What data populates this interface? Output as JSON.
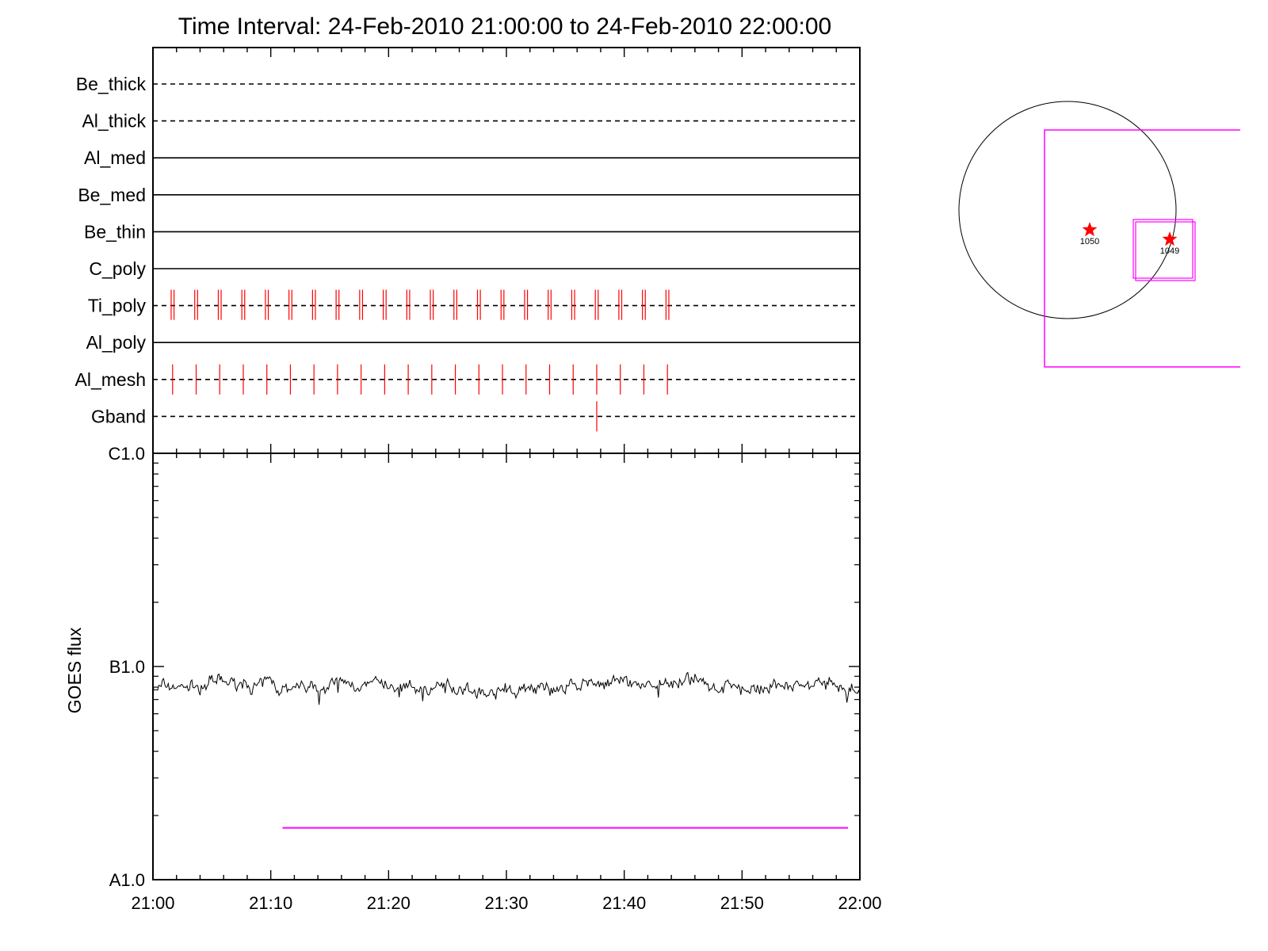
{
  "chart_data": [
    {
      "type": "timeline",
      "title": "Time Interval: 24-Feb-2010 21:00:00 to 24-Feb-2010 22:00:00",
      "x_ticks": [
        "21:00",
        "21:10",
        "21:20",
        "21:30",
        "21:40",
        "21:50",
        "22:00"
      ],
      "rows": [
        {
          "name": "Be_thick",
          "style": "dashed",
          "events": []
        },
        {
          "name": "Al_thick",
          "style": "dashed",
          "events": []
        },
        {
          "name": "Al_med",
          "style": "solid",
          "events": []
        },
        {
          "name": "Be_med",
          "style": "solid",
          "events": []
        },
        {
          "name": "Be_thin",
          "style": "solid",
          "events": []
        },
        {
          "name": "C_poly",
          "style": "solid",
          "events": []
        },
        {
          "name": "Ti_poly",
          "style": "dashed",
          "marker": "double",
          "events": [
            "21:01:40",
            "21:03:40",
            "21:05:40",
            "21:07:40",
            "21:09:40",
            "21:11:40",
            "21:13:40",
            "21:15:40",
            "21:17:40",
            "21:19:40",
            "21:21:40",
            "21:23:40",
            "21:25:40",
            "21:27:40",
            "21:29:40",
            "21:31:40",
            "21:33:40",
            "21:35:40",
            "21:37:40",
            "21:39:40",
            "21:41:40",
            "21:43:40"
          ]
        },
        {
          "name": "Al_poly",
          "style": "solid",
          "events": []
        },
        {
          "name": "Al_mesh",
          "style": "dashed",
          "marker": "single",
          "events": [
            "21:01:40",
            "21:03:40",
            "21:05:40",
            "21:07:40",
            "21:09:40",
            "21:11:40",
            "21:13:40",
            "21:15:40",
            "21:17:40",
            "21:19:40",
            "21:21:40",
            "21:23:40",
            "21:25:40",
            "21:27:40",
            "21:29:40",
            "21:31:40",
            "21:33:40",
            "21:35:40",
            "21:37:40",
            "21:39:40",
            "21:41:40",
            "21:43:40"
          ]
        },
        {
          "name": "Gband",
          "style": "dashed",
          "marker": "single",
          "events": [
            "21:37:40"
          ]
        }
      ],
      "marker_color": "#ff0000"
    },
    {
      "type": "line",
      "ylabel": "GOES flux",
      "yscale": "log",
      "y_ticks": [
        "C1.0",
        "B1.0",
        "A1.0"
      ],
      "ylim_class": [
        "A1.0",
        "C1.0"
      ],
      "xlim": [
        "21:00",
        "22:00"
      ],
      "x_ticks": [
        "21:00",
        "21:10",
        "21:20",
        "21:30",
        "21:40",
        "21:50",
        "22:00"
      ],
      "series_color": "#000000",
      "series_level": "B0.8",
      "interval_bar": {
        "start": "21:11",
        "end": "21:59",
        "color": "#ff00ff"
      }
    },
    {
      "type": "map",
      "circle": "solar-disk",
      "active_regions": [
        {
          "label": "1050",
          "marker": "star",
          "color": "#ff0000"
        },
        {
          "label": "1049",
          "marker": "star",
          "color": "#ff0000"
        }
      ],
      "fov_color": "#ff00ff"
    }
  ]
}
